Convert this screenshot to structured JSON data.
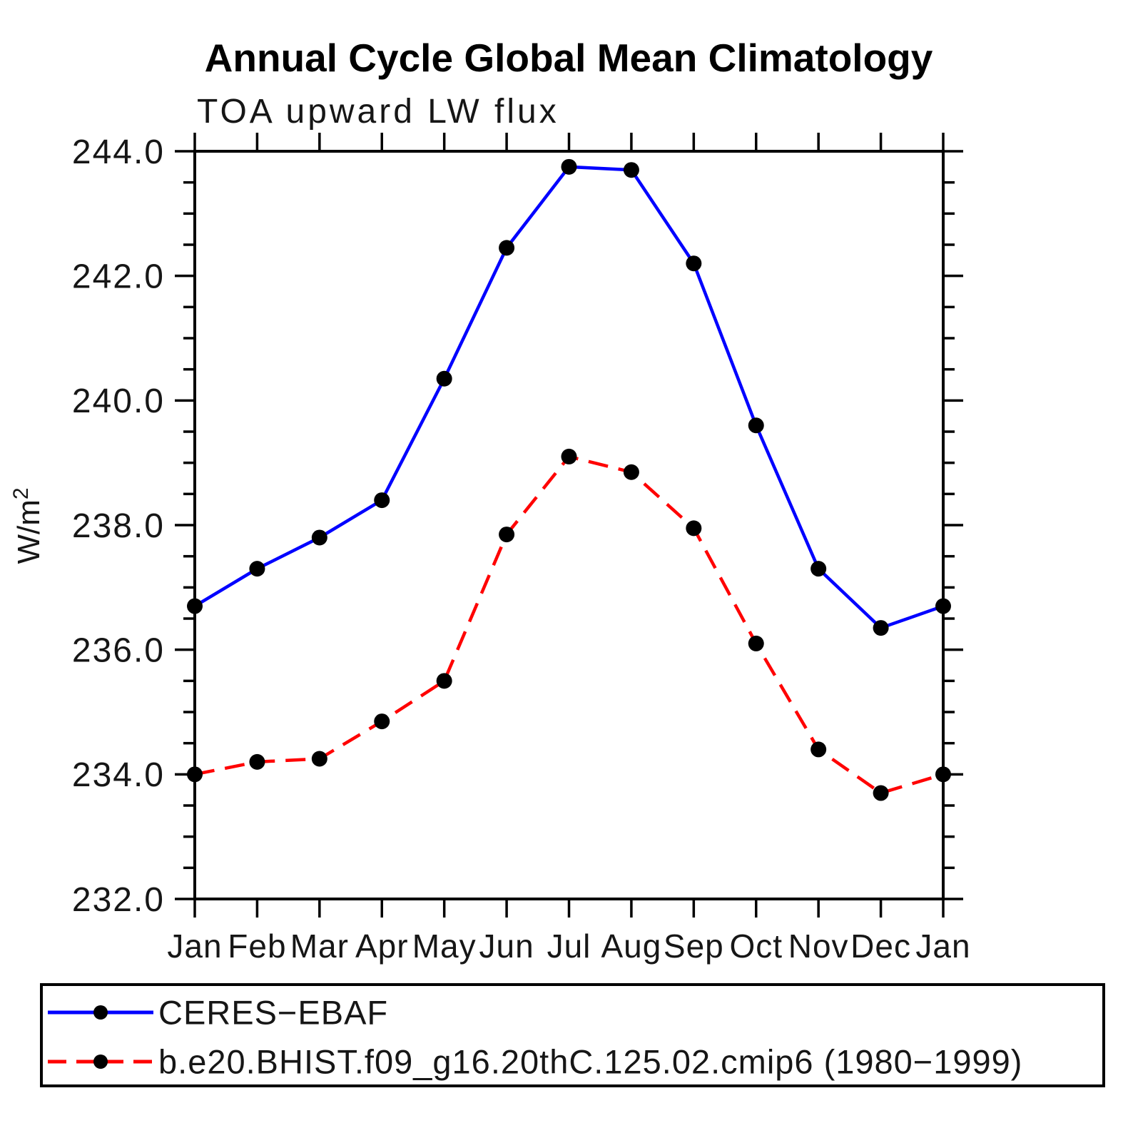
{
  "title": "Annual Cycle Global Mean Climatology",
  "subtitle": "TOA upward LW flux",
  "y_axis": {
    "label_base": "W/m",
    "label_sup": "2"
  },
  "legend": {
    "items": [
      {
        "label": "CERES−EBAF"
      },
      {
        "label": "b.e20.BHIST.f09_g16.20thC.125.02.cmip6 (1980−1999)"
      }
    ]
  },
  "chart_data": {
    "type": "line",
    "title": "Annual Cycle Global Mean Climatology",
    "subtitle": "TOA upward LW flux",
    "xlabel": "",
    "ylabel": "W/m^2",
    "categories": [
      "Jan",
      "Feb",
      "Mar",
      "Apr",
      "May",
      "Jun",
      "Jul",
      "Aug",
      "Sep",
      "Oct",
      "Nov",
      "Dec",
      "Jan"
    ],
    "ylim": [
      232.0,
      244.0
    ],
    "ytick_step": 2.0,
    "yminor_step": 0.5,
    "grid": false,
    "legend_position": "bottom-boxed",
    "series": [
      {
        "name": "CERES−EBAF",
        "color": "#0000ff",
        "line_style": "solid",
        "marker": "circle",
        "marker_color": "#000000",
        "values": [
          236.7,
          237.3,
          237.8,
          238.4,
          240.35,
          242.45,
          243.75,
          243.7,
          242.2,
          239.6,
          237.3,
          236.35,
          236.7
        ]
      },
      {
        "name": "b.e20.BHIST.f09_g16.20thC.125.02.cmip6 (1980−1999)",
        "color": "#ff0000",
        "line_style": "dashed",
        "marker": "circle",
        "marker_color": "#000000",
        "values": [
          234.0,
          234.2,
          234.25,
          234.85,
          235.5,
          237.85,
          239.1,
          238.85,
          237.95,
          236.1,
          234.4,
          233.7,
          234.0
        ]
      }
    ]
  }
}
